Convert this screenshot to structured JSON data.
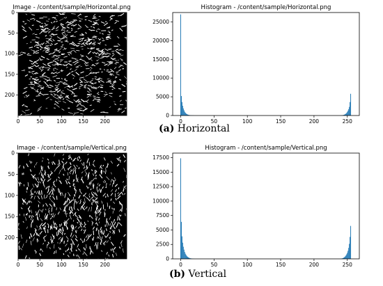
{
  "caption_a": {
    "label": "(a)",
    "text": " Horizontal"
  },
  "caption_b": {
    "label": "(b)",
    "text": " Vertical"
  },
  "panels": [
    {
      "image_title": "Image - /content/sample/Horizontal.png",
      "image_xticks": [
        0,
        50,
        100,
        150,
        200
      ],
      "image_yticks": [
        0,
        50,
        100,
        150,
        200
      ],
      "image_range": [
        0,
        250
      ]
    },
    {
      "image_title": "Image - /content/sample/Vertical.png",
      "image_xticks": [
        0,
        50,
        100,
        150,
        200
      ],
      "image_yticks": [
        0,
        50,
        100,
        150,
        200
      ],
      "image_range": [
        0,
        250
      ]
    }
  ],
  "colors": {
    "bar": "#1f77b4",
    "pixel_white": "#ffffff",
    "pixel_black": "#000000"
  },
  "chart_data": [
    {
      "type": "bar",
      "title": "Histogram - /content/sample/Horizontal.png",
      "xlabel": "",
      "ylabel": "",
      "xlim": [
        -12,
        268
      ],
      "ylim": [
        0,
        27500
      ],
      "xticks": [
        0,
        50,
        100,
        150,
        200,
        250
      ],
      "yticks": [
        0,
        5000,
        10000,
        15000,
        20000,
        25000
      ],
      "grid": false,
      "x": [
        0,
        1,
        2,
        3,
        4,
        5,
        6,
        7,
        8,
        9,
        10,
        11,
        12,
        13,
        14,
        15,
        16,
        17,
        18,
        19,
        20,
        240,
        241,
        242,
        243,
        244,
        245,
        246,
        247,
        248,
        249,
        250,
        251,
        252,
        253,
        254,
        255
      ],
      "values": [
        27000,
        5200,
        3600,
        2600,
        1900,
        1400,
        1000,
        750,
        550,
        400,
        300,
        220,
        160,
        120,
        90,
        70,
        50,
        40,
        30,
        20,
        15,
        30,
        40,
        60,
        90,
        130,
        190,
        270,
        380,
        520,
        700,
        950,
        1300,
        1700,
        2300,
        3600,
        5800
      ]
    },
    {
      "type": "bar",
      "title": "Histogram - /content/sample/Vertical.png",
      "xlabel": "",
      "ylabel": "",
      "xlim": [
        -12,
        268
      ],
      "ylim": [
        0,
        18300
      ],
      "xticks": [
        0,
        50,
        100,
        150,
        200,
        250
      ],
      "yticks": [
        0,
        2500,
        5000,
        7500,
        10000,
        12500,
        15000,
        17500
      ],
      "grid": false,
      "x": [
        0,
        1,
        2,
        3,
        4,
        5,
        6,
        7,
        8,
        9,
        10,
        11,
        12,
        13,
        14,
        15,
        16,
        17,
        18,
        19,
        20,
        240,
        241,
        242,
        243,
        244,
        245,
        246,
        247,
        248,
        249,
        250,
        251,
        252,
        253,
        254,
        255
      ],
      "values": [
        17400,
        6400,
        3900,
        2800,
        2100,
        1600,
        1200,
        900,
        700,
        520,
        390,
        290,
        220,
        160,
        120,
        90,
        70,
        50,
        35,
        25,
        15,
        30,
        45,
        70,
        110,
        160,
        230,
        320,
        440,
        600,
        800,
        1050,
        1400,
        1900,
        2600,
        3800,
        5700
      ]
    }
  ]
}
